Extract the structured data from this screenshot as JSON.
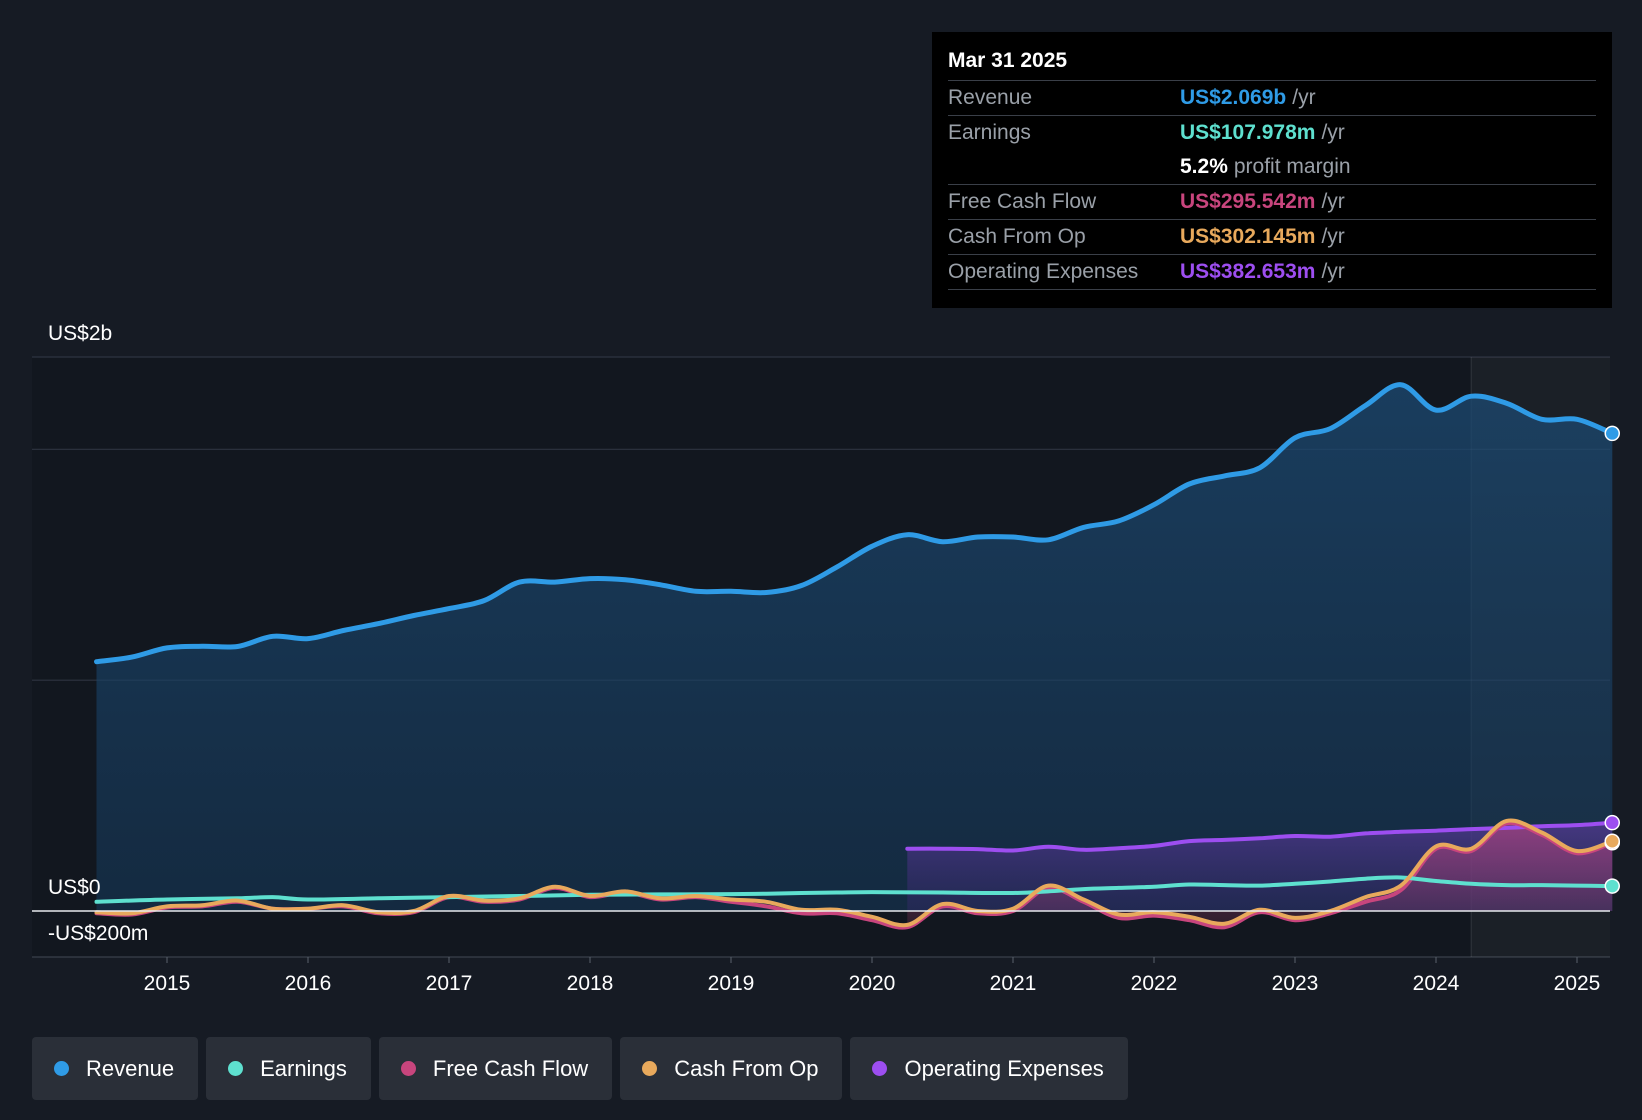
{
  "chart_data": {
    "type": "line",
    "y_axis_labels": {
      "top": "US$2b",
      "zero": "US$0",
      "bottom": "-US$200m"
    },
    "ylim": [
      -200,
      2400
    ],
    "unit": "US$ millions",
    "x_tick_labels": [
      "2015",
      "2016",
      "2017",
      "2018",
      "2019",
      "2020",
      "2021",
      "2022",
      "2023",
      "2024",
      "2025"
    ],
    "x_tick_values": [
      2015,
      2016,
      2017,
      2018,
      2019,
      2020,
      2021,
      2022,
      2023,
      2024,
      2025
    ],
    "forecast_start": 2024.25,
    "series": [
      {
        "name": "Revenue",
        "color": "#2f9be6",
        "area": true,
        "points": [
          [
            2014.5,
            1080
          ],
          [
            2014.75,
            1100
          ],
          [
            2015.0,
            1140
          ],
          [
            2015.25,
            1147
          ],
          [
            2015.5,
            1146
          ],
          [
            2015.75,
            1190
          ],
          [
            2016.0,
            1180
          ],
          [
            2016.25,
            1215
          ],
          [
            2016.5,
            1245
          ],
          [
            2016.75,
            1280
          ],
          [
            2017.0,
            1310
          ],
          [
            2017.25,
            1345
          ],
          [
            2017.5,
            1425
          ],
          [
            2017.75,
            1425
          ],
          [
            2018.0,
            1440
          ],
          [
            2018.25,
            1435
          ],
          [
            2018.5,
            1413
          ],
          [
            2018.75,
            1385
          ],
          [
            2019.0,
            1385
          ],
          [
            2019.25,
            1380
          ],
          [
            2019.5,
            1410
          ],
          [
            2019.75,
            1490
          ],
          [
            2020.0,
            1580
          ],
          [
            2020.25,
            1630
          ],
          [
            2020.5,
            1600
          ],
          [
            2020.75,
            1620
          ],
          [
            2021.0,
            1620
          ],
          [
            2021.25,
            1608
          ],
          [
            2021.5,
            1662
          ],
          [
            2021.75,
            1690
          ],
          [
            2022.0,
            1760
          ],
          [
            2022.25,
            1850
          ],
          [
            2022.5,
            1885
          ],
          [
            2022.75,
            1920
          ],
          [
            2023.0,
            2050
          ],
          [
            2023.25,
            2090
          ],
          [
            2023.5,
            2190
          ],
          [
            2023.75,
            2280
          ],
          [
            2024.0,
            2170
          ],
          [
            2024.25,
            2230
          ],
          [
            2024.5,
            2200
          ],
          [
            2024.75,
            2130
          ],
          [
            2025.0,
            2130
          ],
          [
            2025.25,
            2069
          ]
        ]
      },
      {
        "name": "Earnings",
        "color": "#5ee0cf",
        "area": false,
        "points": [
          [
            2014.5,
            40
          ],
          [
            2015.0,
            50
          ],
          [
            2015.5,
            55
          ],
          [
            2015.75,
            60
          ],
          [
            2016.0,
            50
          ],
          [
            2016.5,
            55
          ],
          [
            2017.0,
            60
          ],
          [
            2017.5,
            65
          ],
          [
            2018.0,
            70
          ],
          [
            2018.5,
            72
          ],
          [
            2019.0,
            73
          ],
          [
            2019.25,
            75
          ],
          [
            2019.5,
            78
          ],
          [
            2019.75,
            80
          ],
          [
            2020.0,
            82
          ],
          [
            2020.5,
            80
          ],
          [
            2021.0,
            78
          ],
          [
            2021.25,
            85
          ],
          [
            2021.5,
            95
          ],
          [
            2021.75,
            100
          ],
          [
            2022.0,
            105
          ],
          [
            2022.25,
            115
          ],
          [
            2022.5,
            112
          ],
          [
            2022.75,
            110
          ],
          [
            2023.0,
            118
          ],
          [
            2023.25,
            128
          ],
          [
            2023.5,
            140
          ],
          [
            2023.75,
            145
          ],
          [
            2024.0,
            130
          ],
          [
            2024.25,
            118
          ],
          [
            2024.5,
            112
          ],
          [
            2024.75,
            112
          ],
          [
            2025.0,
            110
          ],
          [
            2025.25,
            107.978
          ]
        ]
      },
      {
        "name": "Free Cash Flow",
        "color": "#c8457d",
        "area": true,
        "points": [
          [
            2014.5,
            -10
          ],
          [
            2014.75,
            -15
          ],
          [
            2015.0,
            15
          ],
          [
            2015.25,
            20
          ],
          [
            2015.5,
            40
          ],
          [
            2015.75,
            10
          ],
          [
            2016.0,
            10
          ],
          [
            2016.25,
            20
          ],
          [
            2016.5,
            -10
          ],
          [
            2016.75,
            -5
          ],
          [
            2017.0,
            60
          ],
          [
            2017.25,
            40
          ],
          [
            2017.5,
            50
          ],
          [
            2017.75,
            100
          ],
          [
            2018.0,
            60
          ],
          [
            2018.25,
            80
          ],
          [
            2018.5,
            50
          ],
          [
            2018.75,
            60
          ],
          [
            2019.0,
            40
          ],
          [
            2019.25,
            20
          ],
          [
            2019.5,
            -10
          ],
          [
            2019.75,
            -10
          ],
          [
            2020.0,
            -40
          ],
          [
            2020.25,
            -70
          ],
          [
            2020.5,
            20
          ],
          [
            2020.75,
            -10
          ],
          [
            2021.0,
            0
          ],
          [
            2021.25,
            100
          ],
          [
            2021.5,
            40
          ],
          [
            2021.75,
            -30
          ],
          [
            2022.0,
            -20
          ],
          [
            2022.25,
            -40
          ],
          [
            2022.5,
            -70
          ],
          [
            2022.75,
            -5
          ],
          [
            2023.0,
            -40
          ],
          [
            2023.25,
            -10
          ],
          [
            2023.5,
            40
          ],
          [
            2023.75,
            90
          ],
          [
            2024.0,
            270
          ],
          [
            2024.25,
            260
          ],
          [
            2024.5,
            380
          ],
          [
            2024.75,
            330
          ],
          [
            2025.0,
            250
          ],
          [
            2025.25,
            295.542
          ]
        ]
      },
      {
        "name": "Cash From Op",
        "color": "#e8a95c",
        "area": false,
        "points": [
          [
            2014.5,
            -5
          ],
          [
            2014.75,
            -10
          ],
          [
            2015.0,
            20
          ],
          [
            2015.25,
            25
          ],
          [
            2015.5,
            45
          ],
          [
            2015.75,
            10
          ],
          [
            2016.0,
            10
          ],
          [
            2016.25,
            25
          ],
          [
            2016.5,
            -5
          ],
          [
            2016.75,
            0
          ],
          [
            2017.0,
            65
          ],
          [
            2017.25,
            45
          ],
          [
            2017.5,
            55
          ],
          [
            2017.75,
            105
          ],
          [
            2018.0,
            65
          ],
          [
            2018.25,
            85
          ],
          [
            2018.5,
            55
          ],
          [
            2018.75,
            65
          ],
          [
            2019.0,
            50
          ],
          [
            2019.25,
            40
          ],
          [
            2019.5,
            5
          ],
          [
            2019.75,
            5
          ],
          [
            2020.0,
            -25
          ],
          [
            2020.25,
            -60
          ],
          [
            2020.5,
            30
          ],
          [
            2020.75,
            0
          ],
          [
            2021.0,
            10
          ],
          [
            2021.25,
            110
          ],
          [
            2021.5,
            50
          ],
          [
            2021.75,
            -15
          ],
          [
            2022.0,
            -5
          ],
          [
            2022.25,
            -25
          ],
          [
            2022.5,
            -55
          ],
          [
            2022.75,
            5
          ],
          [
            2023.0,
            -30
          ],
          [
            2023.25,
            0
          ],
          [
            2023.5,
            60
          ],
          [
            2023.75,
            110
          ],
          [
            2024.0,
            280
          ],
          [
            2024.25,
            270
          ],
          [
            2024.5,
            390
          ],
          [
            2024.75,
            340
          ],
          [
            2025.0,
            260
          ],
          [
            2025.25,
            302.145
          ]
        ]
      },
      {
        "name": "Operating Expenses",
        "color": "#9d4ef0",
        "area": true,
        "points": [
          [
            2020.25,
            270
          ],
          [
            2020.5,
            270
          ],
          [
            2020.75,
            268
          ],
          [
            2021.0,
            262
          ],
          [
            2021.25,
            278
          ],
          [
            2021.5,
            265
          ],
          [
            2021.75,
            272
          ],
          [
            2022.0,
            282
          ],
          [
            2022.25,
            303
          ],
          [
            2022.5,
            308
          ],
          [
            2022.75,
            315
          ],
          [
            2023.0,
            325
          ],
          [
            2023.25,
            322
          ],
          [
            2023.5,
            336
          ],
          [
            2023.75,
            343
          ],
          [
            2024.0,
            348
          ],
          [
            2024.25,
            355
          ],
          [
            2024.5,
            360
          ],
          [
            2024.75,
            367
          ],
          [
            2025.0,
            372
          ],
          [
            2025.25,
            382.653
          ]
        ]
      }
    ]
  },
  "tooltip": {
    "date": "Mar 31 2025",
    "rows": [
      {
        "label": "Revenue",
        "value": "US$2.069b",
        "unit": "/yr",
        "color": "#2f9be6"
      },
      {
        "label": "Earnings",
        "value": "US$107.978m",
        "unit": "/yr",
        "color": "#5ee0cf"
      },
      {
        "label": "Free Cash Flow",
        "value": "US$295.542m",
        "unit": "/yr",
        "color": "#c8457d"
      },
      {
        "label": "Cash From Op",
        "value": "US$302.145m",
        "unit": "/yr",
        "color": "#e8a95c"
      },
      {
        "label": "Operating Expenses",
        "value": "US$382.653m",
        "unit": "/yr",
        "color": "#9d4ef0"
      }
    ],
    "margin": {
      "value": "5.2%",
      "text": "profit margin"
    }
  },
  "legend": [
    {
      "label": "Revenue",
      "color": "#2f9be6"
    },
    {
      "label": "Earnings",
      "color": "#5ee0cf"
    },
    {
      "label": "Free Cash Flow",
      "color": "#c8457d"
    },
    {
      "label": "Cash From Op",
      "color": "#e8a95c"
    },
    {
      "label": "Operating Expenses",
      "color": "#9d4ef0"
    }
  ]
}
